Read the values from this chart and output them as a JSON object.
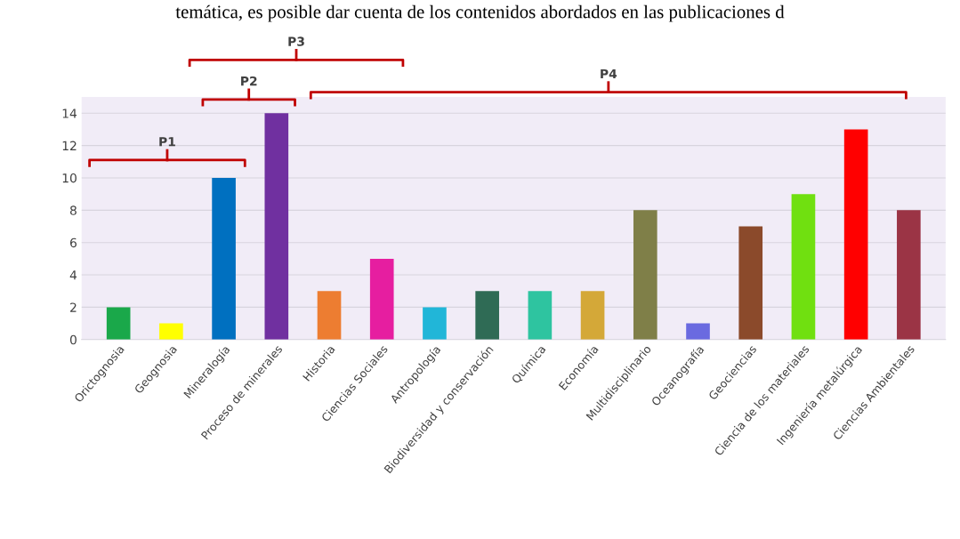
{
  "chart_data": {
    "type": "bar",
    "categories": [
      "Orictognosia",
      "Geognosia",
      "Mineralogía",
      "Proceso de minerales",
      "Historia",
      "Ciencias Sociales",
      "Antropología",
      "Biodiversidad y conservación",
      "Química",
      "Economía",
      "Multidisciplinario",
      "Oceanografía",
      "Geociencias",
      "Ciencia de los materiales",
      "Ingeniería metalúrgica",
      "Ciencias Ambientales"
    ],
    "values": [
      2,
      1,
      10,
      14,
      3,
      5,
      2,
      3,
      3,
      3,
      8,
      1,
      7,
      9,
      13,
      8
    ],
    "colors": [
      "#1aa84a",
      "#ffff00",
      "#0070c0",
      "#7030a0",
      "#ed7d31",
      "#e61ea0",
      "#21b6d8",
      "#2f6b55",
      "#2ec4a0",
      "#d4a838",
      "#7f7f48",
      "#6a6ae0",
      "#8b4a2b",
      "#70e010",
      "#ff0000",
      "#9b3445"
    ],
    "ylim": [
      0,
      15
    ],
    "yticks": [
      0,
      2,
      4,
      6,
      8,
      10,
      12,
      14
    ],
    "grid": "y",
    "annotations": [
      "temática, es posible dar cuenta de los contenidos abordados en las publicaciones d",
      "P1",
      "P2",
      "P3",
      "P4"
    ]
  }
}
